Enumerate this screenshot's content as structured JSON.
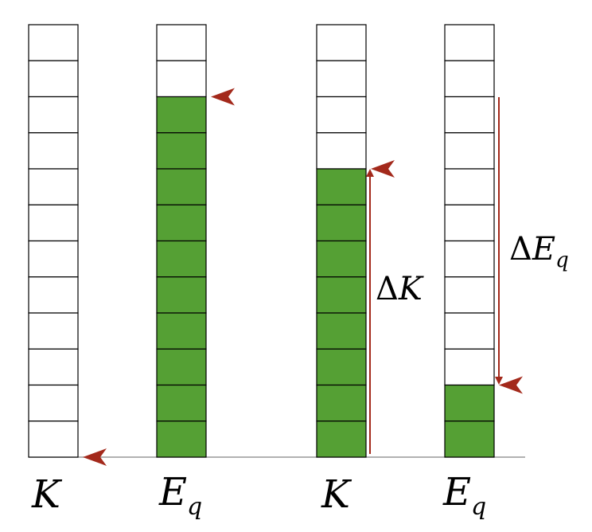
{
  "diagram": {
    "cells_per_bar": 12,
    "colors": {
      "fill": "#55a034",
      "empty": "#ffffff",
      "border": "#000000",
      "arrow": "#a3291b",
      "baseline": "#999999"
    },
    "bars": [
      {
        "id": "k-before",
        "label_main": "K",
        "label_sub": "",
        "filled_cells": 0,
        "marker": "baseline"
      },
      {
        "id": "eq-before",
        "label_main": "E",
        "label_sub": "q",
        "filled_cells": 10,
        "marker": "top"
      },
      {
        "id": "k-after",
        "label_main": "K",
        "label_sub": "",
        "filled_cells": 8,
        "marker": "top"
      },
      {
        "id": "eq-after",
        "label_main": "E",
        "label_sub": "q",
        "filled_cells": 2,
        "marker": "top"
      }
    ],
    "annotations": {
      "delta_k": {
        "symbol": "Δ",
        "main": "K",
        "sub": ""
      },
      "delta_eq": {
        "symbol": "Δ",
        "main": "E",
        "sub": "q"
      }
    }
  }
}
